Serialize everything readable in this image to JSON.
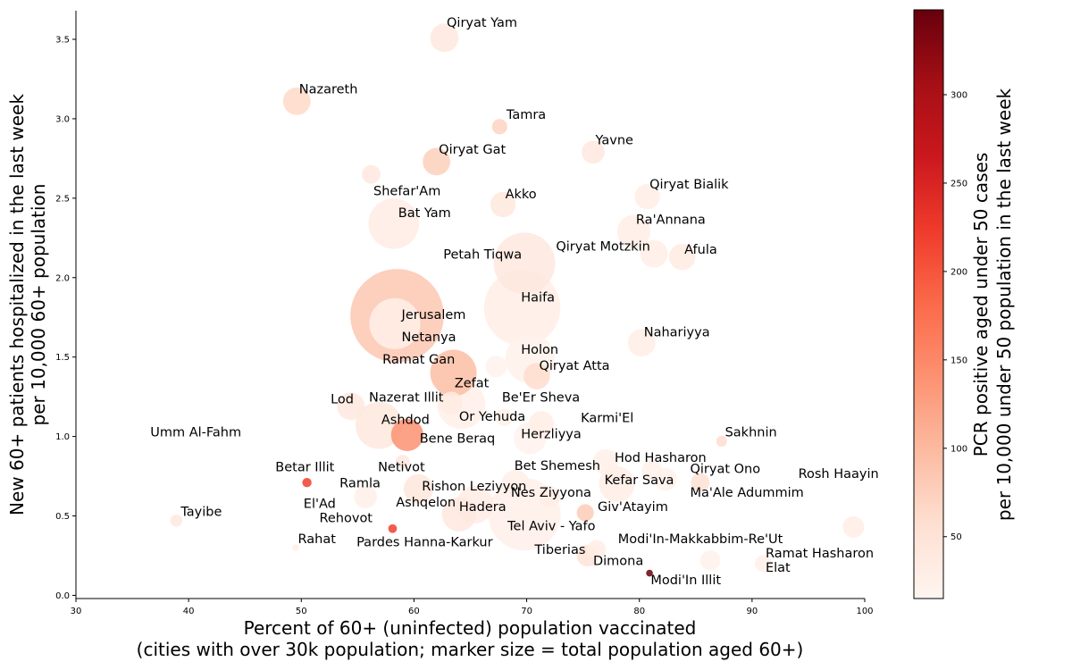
{
  "chart_data": {
    "type": "scatter",
    "xlabel": "Percent of 60+ (uninfected) population vaccinated",
    "xlabel_line2": "(cities with over 30k population; marker size = total population aged 60+)",
    "ylabel": "New 60+ patients hospitalized in the last week",
    "ylabel_line2": "per 10,000 60+ population",
    "colorbar_label": "PCR positive aged under 50 cases",
    "colorbar_label_line2": "per 10,000 under 50 population in the last week",
    "xlim": [
      30,
      100
    ],
    "ylim": [
      -0.02,
      3.68
    ],
    "x_ticks": [
      30,
      40,
      50,
      60,
      70,
      80,
      90,
      100
    ],
    "y_ticks": [
      "0.0",
      "0.5",
      "1.0",
      "1.5",
      "2.0",
      "2.5",
      "3.0",
      "3.5"
    ],
    "colorbar_range": [
      15,
      348
    ],
    "colorbar_ticks": [
      50,
      100,
      150,
      200,
      250,
      300
    ],
    "colormap": [
      "#fff5f0",
      "#fee0d2",
      "#fcbba1",
      "#fc9272",
      "#fb6a4a",
      "#ef3b2c",
      "#cb181d",
      "#a50f15",
      "#67000d"
    ],
    "grid": false,
    "points": [
      {
        "name": "Qiryat Yam",
        "x": 62.7,
        "y": 3.51,
        "c": 38,
        "pop60": 14000
      },
      {
        "name": "Nazareth",
        "x": 49.6,
        "y": 3.11,
        "c": 65,
        "pop60": 13000
      },
      {
        "name": "Tamra",
        "x": 67.6,
        "y": 2.95,
        "c": 70,
        "pop60": 4000
      },
      {
        "name": "Yavne",
        "x": 75.9,
        "y": 2.79,
        "c": 40,
        "pop60": 9000
      },
      {
        "name": "Qiryat Gat",
        "x": 62.0,
        "y": 2.73,
        "c": 75,
        "pop60": 13000
      },
      {
        "name": "Shefar'Am",
        "x": 56.2,
        "y": 2.65,
        "c": 38,
        "pop60": 6000
      },
      {
        "name": "Qiryat Bialik",
        "x": 80.7,
        "y": 2.51,
        "c": 30,
        "pop60": 11000
      },
      {
        "name": "Akko",
        "x": 67.9,
        "y": 2.46,
        "c": 42,
        "pop60": 11000
      },
      {
        "name": "Bat Yam",
        "x": 58.2,
        "y": 2.34,
        "c": 32,
        "pop60": 44000
      },
      {
        "name": "Ra'Annana",
        "x": 79.5,
        "y": 2.29,
        "c": 30,
        "pop60": 19000
      },
      {
        "name": "Qiryat Motzkin",
        "x": 81.3,
        "y": 2.15,
        "c": 30,
        "pop60": 13000
      },
      {
        "name": "Afula",
        "x": 83.8,
        "y": 2.13,
        "c": 35,
        "pop60": 12000
      },
      {
        "name": "Petah Tiqwa",
        "x": 69.8,
        "y": 2.09,
        "c": 40,
        "pop60": 65000
      },
      {
        "name": "Haifa",
        "x": 69.6,
        "y": 1.81,
        "c": 30,
        "pop60": 100000
      },
      {
        "name": "Jerusalem",
        "x": 58.5,
        "y": 1.76,
        "c": 85,
        "pop60": 150000
      },
      {
        "name": "Netanya",
        "x": 58.3,
        "y": 1.71,
        "c": 25,
        "pop60": 45000
      },
      {
        "name": "Nahariyya",
        "x": 80.2,
        "y": 1.59,
        "c": 30,
        "pop60": 13000
      },
      {
        "name": "Holon",
        "x": 70.3,
        "y": 1.49,
        "c": 22,
        "pop60": 42000
      },
      {
        "name": "Ramat Gan",
        "x": 63.5,
        "y": 1.4,
        "c": 95,
        "pop60": 37000
      },
      {
        "name": "Qiryat Atta",
        "x": 70.9,
        "y": 1.38,
        "c": 60,
        "pop60": 12000
      },
      {
        "name": "Zefat",
        "x": 67.3,
        "y": 1.44,
        "c": 20,
        "pop60": 8000
      },
      {
        "name": "Nazerat Illit",
        "x": 63.3,
        "y": 1.21,
        "c": 35,
        "pop60": 9000
      },
      {
        "name": "Be'Er Sheva",
        "x": 64.2,
        "y": 1.2,
        "c": 28,
        "pop60": 40000
      },
      {
        "name": "Lod",
        "x": 54.4,
        "y": 1.19,
        "c": 40,
        "pop60": 13000
      },
      {
        "name": "Or Yehuda",
        "x": 68.0,
        "y": 1.12,
        "c": 28,
        "pop60": 5000
      },
      {
        "name": "Karmi'El",
        "x": 71.3,
        "y": 1.08,
        "c": 30,
        "pop60": 11000
      },
      {
        "name": "Ashdod",
        "x": 56.9,
        "y": 1.07,
        "c": 42,
        "pop60": 38000
      },
      {
        "name": "Bene Beraq",
        "x": 59.4,
        "y": 1.01,
        "c": 140,
        "pop60": 18000
      },
      {
        "name": "Herzliyya",
        "x": 70.3,
        "y": 0.99,
        "c": 20,
        "pop60": 18000
      },
      {
        "name": "Sakhnin",
        "x": 87.3,
        "y": 0.97,
        "c": 60,
        "pop60": 2000
      },
      {
        "name": "Hod Hasharon",
        "x": 77.0,
        "y": 0.84,
        "c": 25,
        "pop60": 11000
      },
      {
        "name": "Netivot",
        "x": 59.0,
        "y": 0.84,
        "c": 40,
        "pop60": 3500
      },
      {
        "name": "Qiryat Ono",
        "x": 81.1,
        "y": 0.79,
        "c": 22,
        "pop60": 7000
      },
      {
        "name": "Rosh Haayin",
        "x": 82.3,
        "y": 0.73,
        "c": 22,
        "pop60": 9000
      },
      {
        "name": "Bet Shemesh",
        "x": 69.0,
        "y": 0.7,
        "c": 25,
        "pop60": 14000
      },
      {
        "name": "Kefar Sava",
        "x": 78.0,
        "y": 0.7,
        "c": 30,
        "pop60": 22000
      },
      {
        "name": "Ma'Ale Adummim",
        "x": 85.4,
        "y": 0.71,
        "c": 55,
        "pop60": 6000
      },
      {
        "name": "Betar Illit",
        "x": 50.5,
        "y": 0.71,
        "c": 220,
        "pop60": 1500
      },
      {
        "name": "Rishon Leziyyon",
        "x": 60.4,
        "y": 0.67,
        "c": 45,
        "pop60": 15000
      },
      {
        "name": "Ramla",
        "x": 55.7,
        "y": 0.62,
        "c": 25,
        "pop60": 9000
      },
      {
        "name": "Nes Ziyyona",
        "x": 72.0,
        "y": 0.62,
        "c": 30,
        "pop60": 8000
      },
      {
        "name": "Ashqelon",
        "x": 65.4,
        "y": 0.57,
        "c": 32,
        "pop60": 24000
      },
      {
        "name": "Hadera",
        "x": 64.0,
        "y": 0.51,
        "c": 40,
        "pop60": 20000
      },
      {
        "name": "Tel Aviv - Yafo",
        "x": 69.8,
        "y": 0.51,
        "c": 25,
        "pop60": 90000
      },
      {
        "name": "Giv'Atayim",
        "x": 75.2,
        "y": 0.52,
        "c": 80,
        "pop60": 5000
      },
      {
        "name": "Tayibe",
        "x": 38.9,
        "y": 0.47,
        "c": 40,
        "pop60": 2500
      },
      {
        "name": "Rehovot",
        "x": 58.1,
        "y": 0.42,
        "c": 220,
        "pop60": 1300
      },
      {
        "name": "Modi'In-Makkabbim-Re'Ut",
        "x": 99.0,
        "y": 0.43,
        "c": 30,
        "pop60": 8000
      },
      {
        "name": "Tiberias",
        "x": 75.4,
        "y": 0.25,
        "c": 50,
        "pop60": 8000
      },
      {
        "name": "Dimona",
        "x": 76.2,
        "y": 0.29,
        "c": 30,
        "pop60": 6000
      },
      {
        "name": "Ramat Hasharon",
        "x": 86.3,
        "y": 0.22,
        "c": 22,
        "pop60": 7000
      },
      {
        "name": "Elat",
        "x": 91.0,
        "y": 0.2,
        "c": 25,
        "pop60": 5000
      },
      {
        "name": "Rahat",
        "x": 49.5,
        "y": 0.3,
        "c": 30,
        "pop60": 800
      },
      {
        "name": "Modi'In Illit",
        "x": 80.9,
        "y": 0.14,
        "c": 348,
        "pop60": 800
      }
    ],
    "labels": [
      {
        "text": "Qiryat Yam",
        "x": 62.9,
        "y": 3.58
      },
      {
        "text": "Nazareth",
        "x": 49.8,
        "y": 3.16
      },
      {
        "text": "Tamra",
        "x": 68.2,
        "y": 3.0
      },
      {
        "text": "Yavne",
        "x": 76.1,
        "y": 2.84
      },
      {
        "text": "Qiryat Gat",
        "x": 62.2,
        "y": 2.78
      },
      {
        "text": "Shefar'Am",
        "x": 56.4,
        "y": 2.52
      },
      {
        "text": "Qiryat Bialik",
        "x": 80.9,
        "y": 2.56
      },
      {
        "text": "Akko",
        "x": 68.1,
        "y": 2.5
      },
      {
        "text": "Bat Yam",
        "x": 58.6,
        "y": 2.38
      },
      {
        "text": "Ra'Annana",
        "x": 79.7,
        "y": 2.34
      },
      {
        "text": "Qiryat Motzkin",
        "x": 72.6,
        "y": 2.17
      },
      {
        "text": "Afula",
        "x": 84.0,
        "y": 2.15
      },
      {
        "text": "Petah Tiqwa",
        "x": 62.6,
        "y": 2.12
      },
      {
        "text": "Haifa",
        "x": 69.5,
        "y": 1.85
      },
      {
        "text": "Jerusalem",
        "x": 58.9,
        "y": 1.74
      },
      {
        "text": "Netanya",
        "x": 58.9,
        "y": 1.6
      },
      {
        "text": "Nahariyya",
        "x": 80.4,
        "y": 1.63
      },
      {
        "text": "Holon",
        "x": 69.5,
        "y": 1.52
      },
      {
        "text": "Ramat Gan",
        "x": 57.2,
        "y": 1.46
      },
      {
        "text": "Qiryat Atta",
        "x": 71.1,
        "y": 1.42
      },
      {
        "text": "Zefat",
        "x": 63.6,
        "y": 1.31
      },
      {
        "text": "Nazerat Illit",
        "x": 56.0,
        "y": 1.22
      },
      {
        "text": "Be'Er Sheva",
        "x": 67.8,
        "y": 1.22
      },
      {
        "text": "Lod",
        "x": 52.6,
        "y": 1.21
      },
      {
        "text": "Or Yehuda",
        "x": 64.0,
        "y": 1.1
      },
      {
        "text": "Karmi'El",
        "x": 74.8,
        "y": 1.09
      },
      {
        "text": "Ashdod",
        "x": 57.1,
        "y": 1.08
      },
      {
        "text": "Umm Al-Fahm",
        "x": 36.6,
        "y": 1.0
      },
      {
        "text": "Bene Beraq",
        "x": 60.5,
        "y": 0.96
      },
      {
        "text": "Herzliyya",
        "x": 69.5,
        "y": 0.99
      },
      {
        "text": "Sakhnin",
        "x": 87.6,
        "y": 1.0
      },
      {
        "text": "Hod Hasharon",
        "x": 77.8,
        "y": 0.84
      },
      {
        "text": "Qiryat Ono",
        "x": 84.5,
        "y": 0.77
      },
      {
        "text": "Rosh Haayin",
        "x": 94.1,
        "y": 0.74
      },
      {
        "text": "Netivot",
        "x": 56.8,
        "y": 0.78
      },
      {
        "text": "Betar Illit",
        "x": 47.7,
        "y": 0.78
      },
      {
        "text": "Bet Shemesh",
        "x": 68.9,
        "y": 0.79
      },
      {
        "text": "Kefar Sava",
        "x": 76.9,
        "y": 0.7
      },
      {
        "text": "Ma'Ale Adummim",
        "x": 84.5,
        "y": 0.62
      },
      {
        "text": "Ramla",
        "x": 53.4,
        "y": 0.68
      },
      {
        "text": "Rishon Leziyyon",
        "x": 60.7,
        "y": 0.66
      },
      {
        "text": "El'Ad",
        "x": 50.2,
        "y": 0.55
      },
      {
        "text": "Nes Ziyyona",
        "x": 68.6,
        "y": 0.62
      },
      {
        "text": "Ashqelon",
        "x": 58.4,
        "y": 0.56
      },
      {
        "text": "Hadera",
        "x": 64.0,
        "y": 0.53
      },
      {
        "text": "Giv'Atayim",
        "x": 76.3,
        "y": 0.53
      },
      {
        "text": "Tayibe",
        "x": 39.3,
        "y": 0.5
      },
      {
        "text": "Rehovot",
        "x": 51.6,
        "y": 0.46
      },
      {
        "text": "Tel Aviv - Yafo",
        "x": 68.3,
        "y": 0.41
      },
      {
        "text": "Modi'In-Makkabbim-Re'Ut",
        "x": 78.1,
        "y": 0.33
      },
      {
        "text": "Rahat",
        "x": 49.7,
        "y": 0.33
      },
      {
        "text": "Pardes Hanna-Karkur",
        "x": 54.9,
        "y": 0.31
      },
      {
        "text": "Tiberias",
        "x": 70.7,
        "y": 0.26
      },
      {
        "text": "Ramat Hasharon",
        "x": 91.2,
        "y": 0.24
      },
      {
        "text": "Dimona",
        "x": 75.9,
        "y": 0.19
      },
      {
        "text": "Elat",
        "x": 91.2,
        "y": 0.15
      },
      {
        "text": "Modi'In Illit",
        "x": 81.0,
        "y": 0.07
      }
    ]
  }
}
